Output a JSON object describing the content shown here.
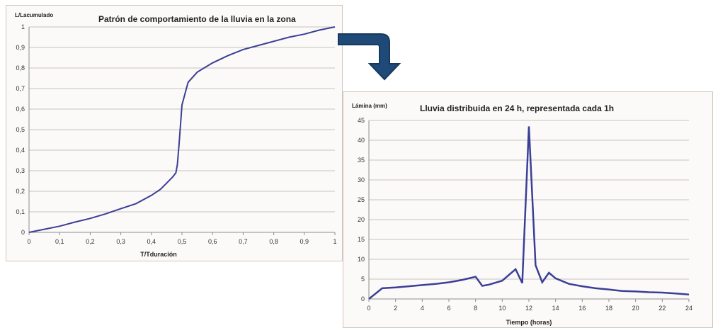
{
  "arrow": {
    "icon": "curved-down-arrow-icon",
    "color": "#1f4a78"
  },
  "chart_data": [
    {
      "type": "line",
      "title": "Patrón de comportamiento de la lluvia en la zona",
      "ylabel": "L/Lacumulado",
      "xlabel": "T/Tduración",
      "xlim": [
        0,
        1
      ],
      "ylim": [
        0,
        1
      ],
      "x_ticks": [
        "0",
        "0,1",
        "0,2",
        "0,3",
        "0,4",
        "0,5",
        "0,6",
        "0,7",
        "0,8",
        "0,9",
        "1"
      ],
      "y_ticks": [
        "0",
        "0,1",
        "0,2",
        "0,3",
        "0,4",
        "0,5",
        "0,6",
        "0,7",
        "0,8",
        "0,9",
        "1"
      ],
      "grid": "horizontal",
      "line_color": "#3b3f96",
      "series": [
        {
          "x": [
            0,
            0.05,
            0.1,
            0.15,
            0.2,
            0.25,
            0.3,
            0.35,
            0.4,
            0.43,
            0.45,
            0.47,
            0.48,
            0.485,
            0.49,
            0.5,
            0.52,
            0.55,
            0.6,
            0.65,
            0.7,
            0.75,
            0.8,
            0.85,
            0.9,
            0.95,
            1.0
          ],
          "y": [
            0,
            0.015,
            0.03,
            0.05,
            0.068,
            0.09,
            0.115,
            0.14,
            0.18,
            0.21,
            0.24,
            0.27,
            0.29,
            0.33,
            0.42,
            0.62,
            0.73,
            0.78,
            0.825,
            0.86,
            0.89,
            0.91,
            0.93,
            0.95,
            0.965,
            0.985,
            1.0
          ]
        }
      ]
    },
    {
      "type": "line",
      "title": "Lluvia distribuida en 24 h, representada cada 1h",
      "ylabel": "Lámina (mm)",
      "xlabel": "Tiempo (horas)",
      "xlim": [
        0,
        24
      ],
      "ylim": [
        0,
        45
      ],
      "x_ticks": [
        "0",
        "2",
        "4",
        "6",
        "8",
        "10",
        "12",
        "14",
        "16",
        "18",
        "20",
        "22",
        "24"
      ],
      "y_ticks": [
        "0",
        "5",
        "10",
        "15",
        "20",
        "25",
        "30",
        "35",
        "40",
        "45"
      ],
      "grid": "horizontal",
      "line_color": "#3b3f96",
      "series": [
        {
          "x": [
            0,
            1,
            2,
            3,
            4,
            5,
            6,
            7,
            8,
            8.5,
            9,
            10,
            11,
            11.5,
            12,
            12.5,
            13,
            13.5,
            14,
            15,
            16,
            17,
            18,
            18.5,
            19,
            20,
            21,
            22,
            23,
            24
          ],
          "y": [
            0,
            2.7,
            2.9,
            3.2,
            3.5,
            3.8,
            4.2,
            4.8,
            5.6,
            3.3,
            3.6,
            4.6,
            7.5,
            4.0,
            43.5,
            8.5,
            4.2,
            6.6,
            5.2,
            3.8,
            3.2,
            2.7,
            2.4,
            2.2,
            2.0,
            1.9,
            1.7,
            1.6,
            1.4,
            1.1
          ]
        }
      ]
    }
  ]
}
